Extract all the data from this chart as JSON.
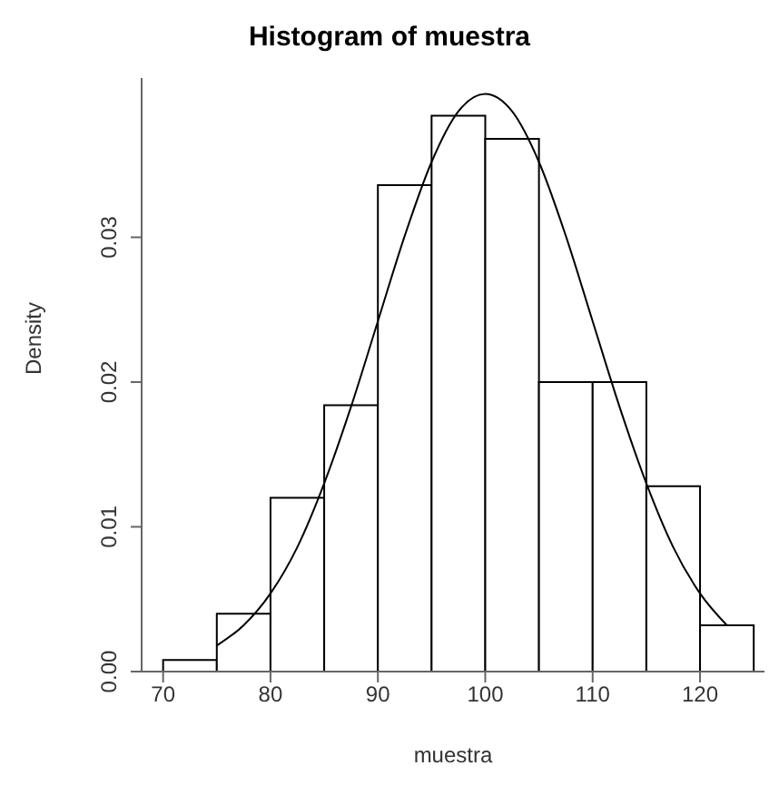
{
  "chart_data": {
    "type": "histogram",
    "title": "Histogram of muestra",
    "xlabel": "muestra",
    "ylabel": "Density",
    "bins": [
      70,
      75,
      80,
      85,
      90,
      95,
      100,
      105,
      110,
      115,
      120,
      125
    ],
    "values": [
      0.0008,
      0.004,
      0.012,
      0.0184,
      0.0336,
      0.0384,
      0.0368,
      0.02,
      0.02,
      0.0128,
      0.0032
    ],
    "color": "#ffffff",
    "series": [
      {
        "type": "line",
        "color": "#000000",
        "marker": "none",
        "x": [
          75,
          77.5,
          80,
          82.5,
          85,
          87.5,
          90,
          92.5,
          95,
          97.5,
          100,
          102.5,
          105,
          107.5,
          110,
          112.5,
          115,
          117.5,
          120,
          122.5
        ],
        "values": [
          0.0018,
          0.0032,
          0.0054,
          0.0086,
          0.013,
          0.0183,
          0.0242,
          0.0301,
          0.0352,
          0.0387,
          0.0399,
          0.0387,
          0.0352,
          0.0301,
          0.0242,
          0.0183,
          0.013,
          0.0086,
          0.0054,
          0.0032
        ]
      }
    ],
    "xlim": [
      68,
      126
    ],
    "ylim": [
      0,
      0.041
    ],
    "xticks": [
      70,
      80,
      90,
      100,
      110,
      120
    ],
    "yticks": [
      {
        "value": 0,
        "label": "0.00"
      },
      {
        "value": 0.01,
        "label": "0.01"
      },
      {
        "value": 0.02,
        "label": "0.02"
      },
      {
        "value": 0.03,
        "label": "0.03"
      }
    ]
  }
}
